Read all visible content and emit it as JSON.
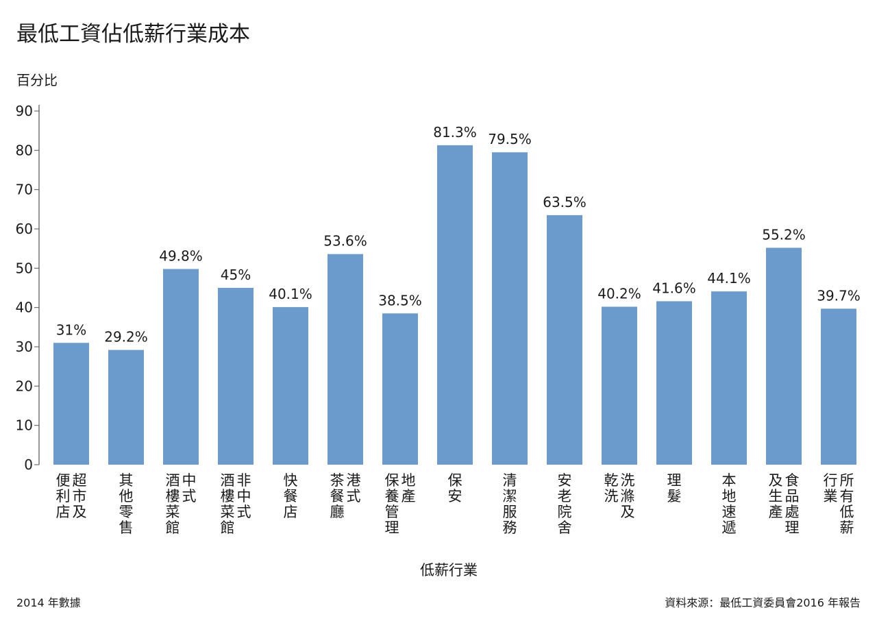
{
  "chart_data": {
    "type": "bar",
    "title": "最低工資佔低薪行業成本",
    "ylabel": "百分比",
    "xlabel": "低薪行業",
    "ylim": [
      0,
      90
    ],
    "yticks": [
      0,
      10,
      20,
      30,
      40,
      50,
      60,
      70,
      80,
      90
    ],
    "grid": false,
    "categories": [
      [
        "超市及",
        "便利店"
      ],
      [
        "其他零售"
      ],
      [
        "中式",
        "酒樓菜館"
      ],
      [
        "非中式",
        "酒樓菜館"
      ],
      [
        "快餐店"
      ],
      [
        "港式",
        "茶餐廳"
      ],
      [
        "地產",
        "保養管理"
      ],
      [
        "保安"
      ],
      [
        "清潔服務"
      ],
      [
        "安老院舍"
      ],
      [
        "洗滌及",
        "乾洗"
      ],
      [
        "理髮"
      ],
      [
        "本地速遞"
      ],
      [
        "食品處理",
        "及生產"
      ],
      [
        "所有低薪",
        "行業"
      ]
    ],
    "values": [
      31,
      29.2,
      49.8,
      45,
      40.1,
      53.6,
      38.5,
      81.3,
      79.5,
      63.5,
      40.2,
      41.6,
      44.1,
      55.2,
      39.7
    ],
    "labels": [
      "31%",
      "29.2%",
      "49.8%",
      "45%",
      "40.1%",
      "53.6%",
      "38.5%",
      "81.3%",
      "79.5%",
      "63.5%",
      "40.2%",
      "41.6%",
      "44.1%",
      "55.2%",
      "39.7%"
    ],
    "bar_color": "#6a9bcc"
  },
  "footer": {
    "note": "2014 年數據",
    "source": "資料來源：最低工資委員會2016 年報告"
  }
}
